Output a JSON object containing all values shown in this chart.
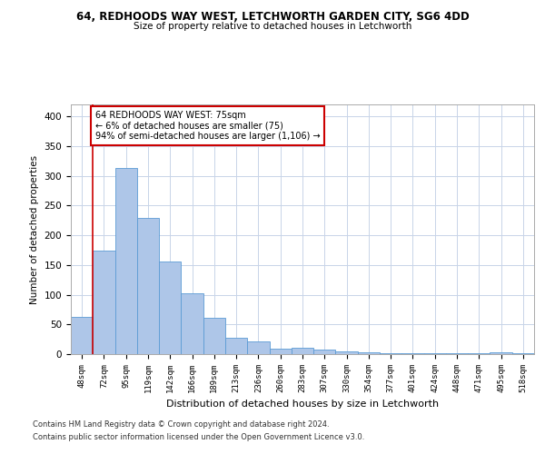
{
  "title1": "64, REDHOODS WAY WEST, LETCHWORTH GARDEN CITY, SG6 4DD",
  "title2": "Size of property relative to detached houses in Letchworth",
  "xlabel": "Distribution of detached houses by size in Letchworth",
  "ylabel": "Number of detached properties",
  "categories": [
    "48sqm",
    "72sqm",
    "95sqm",
    "119sqm",
    "142sqm",
    "166sqm",
    "189sqm",
    "213sqm",
    "236sqm",
    "260sqm",
    "283sqm",
    "307sqm",
    "330sqm",
    "354sqm",
    "377sqm",
    "401sqm",
    "424sqm",
    "448sqm",
    "471sqm",
    "495sqm",
    "518sqm"
  ],
  "values": [
    63,
    174,
    313,
    229,
    156,
    102,
    61,
    28,
    21,
    9,
    10,
    8,
    5,
    3,
    2,
    1,
    1,
    1,
    1,
    3,
    2
  ],
  "bar_color": "#aec6e8",
  "bar_edge_color": "#5b9bd5",
  "vline_color": "#cc0000",
  "vline_x_index": 1,
  "annotation_text": "64 REDHOODS WAY WEST: 75sqm\n← 6% of detached houses are smaller (75)\n94% of semi-detached houses are larger (1,106) →",
  "annotation_box_color": "#ffffff",
  "annotation_box_edge": "#cc0000",
  "footer1": "Contains HM Land Registry data © Crown copyright and database right 2024.",
  "footer2": "Contains public sector information licensed under the Open Government Licence v3.0.",
  "ylim": [
    0,
    420
  ],
  "yticks": [
    0,
    50,
    100,
    150,
    200,
    250,
    300,
    350,
    400
  ],
  "background_color": "#ffffff",
  "grid_color": "#c8d4e8"
}
